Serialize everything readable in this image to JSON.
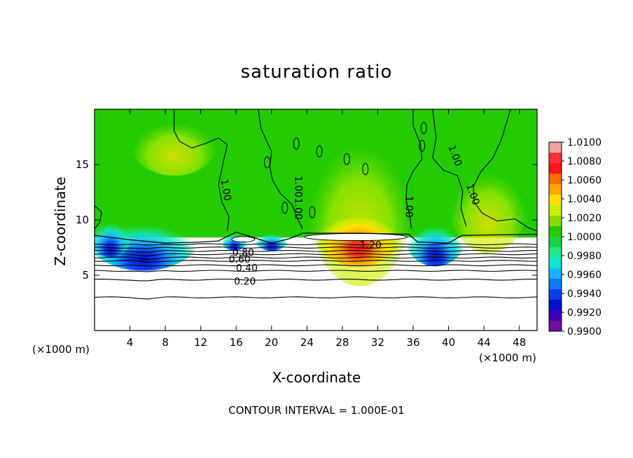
{
  "chart_data": {
    "type": "heatmap",
    "title": "saturation ratio",
    "xlabel": "X-coordinate",
    "ylabel": "Z-coordinate",
    "x_unit_label": "(×1000 m)",
    "xlim": [
      0,
      50
    ],
    "ylim": [
      0,
      20
    ],
    "x_ticks": [
      4,
      8,
      12,
      16,
      20,
      24,
      28,
      32,
      36,
      40,
      44,
      48
    ],
    "y_ticks": [
      5,
      10,
      15
    ],
    "colorbar": {
      "ticks": [
        "1.0100",
        "1.0080",
        "1.0060",
        "1.0040",
        "1.0020",
        "1.0000",
        "0.9980",
        "0.9960",
        "0.9940",
        "0.9920",
        "0.9900"
      ],
      "colors": [
        "#f0a0a0",
        "#ff3030",
        "#ff1818",
        "#ff6e00",
        "#ffa500",
        "#ffe000",
        "#c8f000",
        "#84dc00",
        "#22cc00",
        "#1ed044",
        "#20e890",
        "#10e6d0",
        "#18b4ff",
        "#1278ff",
        "#0a3cf0",
        "#0010c8",
        "#3c00b4",
        "#7010a0"
      ]
    },
    "contour_labels": [
      {
        "text": "1.00",
        "x": 14.8,
        "z": 12.7,
        "angle": 80
      },
      {
        "text": "1.00",
        "x": 23.0,
        "z": 13.0,
        "angle": 90
      },
      {
        "text": "1.00",
        "x": 23.0,
        "z": 11.0,
        "angle": 90
      },
      {
        "text": "1.00",
        "x": 35.5,
        "z": 11.2,
        "angle": 90
      },
      {
        "text": "1.00",
        "x": 40.7,
        "z": 15.8,
        "angle": 70
      },
      {
        "text": "1.00",
        "x": 42.7,
        "z": 12.3,
        "angle": 70
      },
      {
        "text": "1.20",
        "x": 31.2,
        "z": 7.7,
        "angle": 0
      },
      {
        "text": "0.80",
        "x": 16.8,
        "z": 7.0,
        "angle": 0
      },
      {
        "text": "0.60",
        "x": 16.4,
        "z": 6.4,
        "angle": 0
      },
      {
        "text": "0.40",
        "x": 17.2,
        "z": 5.6,
        "angle": 0
      },
      {
        "text": "0.20",
        "x": 17.0,
        "z": 4.4,
        "angle": 0
      }
    ],
    "contour_interval": "CONTOUR INTERVAL = 1.000E-01"
  }
}
